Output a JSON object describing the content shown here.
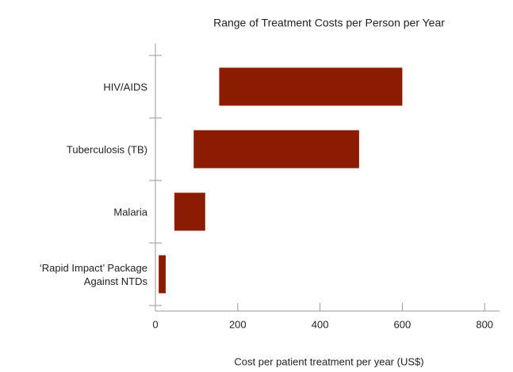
{
  "chart_data": {
    "type": "range-bar",
    "title": "Range of Treatment Costs per Person per Year",
    "x_label": "Cost per patient treatment per year (US$)",
    "categories": [
      "HIV/AIDS",
      "Tuberculosis (TB)",
      "Malaria",
      "‘Rapid Impact’ Package Against NTDs"
    ],
    "low": [
      155,
      93,
      46,
      8
    ],
    "high": [
      600,
      495,
      121,
      25
    ],
    "color": "#8b1c02",
    "xlim": [
      0,
      840
    ],
    "xticks": [
      0,
      200,
      400,
      600,
      800
    ]
  }
}
